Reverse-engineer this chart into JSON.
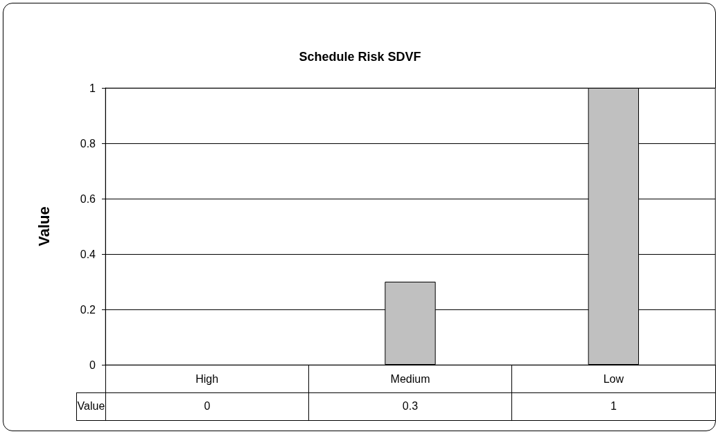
{
  "chart_data": {
    "type": "bar",
    "title": "Schedule Risk SDVF",
    "ylabel": "Value",
    "categories": [
      "High",
      "Medium",
      "Low"
    ],
    "series": [
      {
        "name": "Value",
        "color": "#c0c0c0",
        "values": [
          0,
          0.3,
          1
        ]
      }
    ],
    "ylim": [
      0,
      1
    ],
    "yticks": [
      0,
      0.2,
      0.4,
      0.6,
      0.8,
      1
    ],
    "grid": "y",
    "legend": false,
    "data_labels": true
  }
}
